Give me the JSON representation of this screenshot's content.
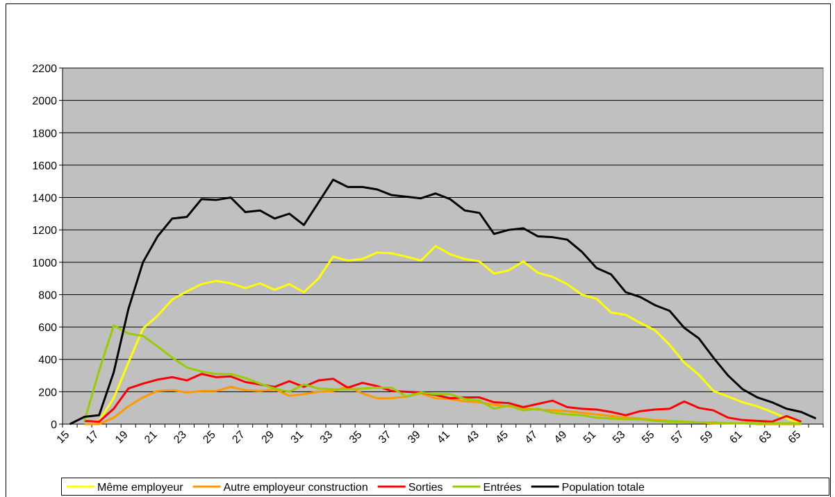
{
  "chart_data": {
    "type": "line",
    "categories": [
      "15",
      null,
      "17",
      null,
      "19",
      null,
      "21",
      null,
      "23",
      null,
      "25",
      null,
      "27",
      null,
      "29",
      null,
      "31",
      null,
      "33",
      null,
      "35",
      null,
      "37",
      null,
      "39",
      null,
      "41",
      null,
      "43",
      null,
      "45",
      null,
      "47",
      null,
      "49",
      null,
      "51",
      null,
      "53",
      null,
      "55",
      null,
      "57",
      null,
      "59",
      null,
      "61",
      null,
      "63",
      null,
      "65",
      null
    ],
    "series": [
      {
        "name": "Même employeur",
        "color": "#ffff00",
        "values": [
          null,
          20,
          20,
          160,
          380,
          590,
          670,
          770,
          820,
          865,
          885,
          870,
          840,
          870,
          830,
          865,
          815,
          900,
          1035,
          1010,
          1020,
          1060,
          1055,
          1035,
          1010,
          1100,
          1050,
          1020,
          1005,
          930,
          950,
          1005,
          935,
          910,
          865,
          800,
          775,
          690,
          675,
          625,
          580,
          490,
          380,
          305,
          205,
          170,
          135,
          110,
          75,
          35,
          5,
          null
        ]
      },
      {
        "name": "Autre employeur construction",
        "color": "#ff9900",
        "values": [
          null,
          0,
          0,
          40,
          110,
          165,
          205,
          210,
          195,
          205,
          205,
          230,
          210,
          205,
          215,
          175,
          185,
          200,
          205,
          230,
          190,
          160,
          160,
          170,
          190,
          160,
          155,
          140,
          135,
          120,
          110,
          100,
          90,
          85,
          80,
          70,
          60,
          50,
          40,
          35,
          25,
          20,
          15,
          10,
          5,
          5,
          5,
          0,
          0,
          0,
          0,
          null
        ]
      },
      {
        "name": "Sorties",
        "color": "#ff0000",
        "values": [
          null,
          20,
          15,
          95,
          220,
          250,
          275,
          290,
          270,
          310,
          290,
          295,
          260,
          245,
          230,
          265,
          230,
          270,
          280,
          225,
          255,
          235,
          205,
          200,
          195,
          180,
          160,
          165,
          165,
          135,
          130,
          105,
          125,
          145,
          105,
          95,
          90,
          75,
          55,
          80,
          90,
          95,
          140,
          100,
          85,
          40,
          25,
          20,
          15,
          50,
          15,
          null
        ]
      },
      {
        "name": "Entrées",
        "color": "#99cc00",
        "values": [
          null,
          20,
          330,
          610,
          560,
          545,
          480,
          410,
          350,
          325,
          310,
          310,
          285,
          250,
          220,
          200,
          245,
          220,
          215,
          215,
          220,
          225,
          225,
          170,
          195,
          185,
          185,
          155,
          145,
          95,
          115,
          85,
          95,
          70,
          60,
          55,
          40,
          35,
          30,
          30,
          20,
          15,
          15,
          10,
          10,
          5,
          5,
          5,
          5,
          5,
          5,
          null
        ]
      },
      {
        "name": "Population totale",
        "color": "#000000",
        "values": [
          0,
          45,
          55,
          320,
          710,
          1000,
          1160,
          1270,
          1280,
          1390,
          1385,
          1400,
          1310,
          1320,
          1270,
          1300,
          1230,
          1370,
          1510,
          1465,
          1465,
          1450,
          1415,
          1405,
          1395,
          1425,
          1390,
          1320,
          1305,
          1175,
          1200,
          1210,
          1160,
          1155,
          1140,
          1065,
          965,
          925,
          815,
          785,
          735,
          700,
          595,
          530,
          410,
          300,
          215,
          165,
          135,
          95,
          75,
          35
        ]
      }
    ],
    "ylim": [
      0,
      2200
    ],
    "yticks": [
      0,
      200,
      400,
      600,
      800,
      1000,
      1200,
      1400,
      1600,
      1800,
      2000,
      2200
    ],
    "grid": true,
    "legend": "bottom"
  }
}
